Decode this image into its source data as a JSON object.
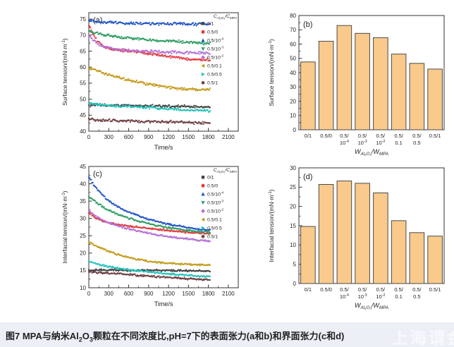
{
  "figure": {
    "caption_runs": [
      {
        "text": "图7 MPA与纳米Al"
      },
      {
        "text": "2",
        "sub": true
      },
      {
        "text": "O"
      },
      {
        "text": "3",
        "sub": true
      },
      {
        "text": "颗粒在不同浓度比,pH=7下的表面张力(a和b)和界面张力(c和d)"
      }
    ],
    "watermark": "上海谓金",
    "colors": {
      "frame": "#333333",
      "caption_bg": "#EDEFF7",
      "bar_fill": "#F9CA8C",
      "bar_border": "#4A4A4A"
    }
  },
  "chart_data": [
    {
      "id": "a",
      "type": "scatter",
      "panel_label": "(a)",
      "xlabel": "Time/s",
      "ylabel": "Surface tension/(mN·m^{-1})",
      "xlim": [
        0,
        2250
      ],
      "ylim": [
        40,
        77
      ],
      "xticks": [
        0,
        300,
        600,
        900,
        1200,
        1500,
        1800,
        2100
      ],
      "yticks": [
        40,
        45,
        50,
        55,
        60,
        65,
        70,
        75
      ],
      "x_minor_step": 150,
      "y_minor_step": 2.5,
      "grid": false,
      "noise": 0.5,
      "legend_position": "top-right-inside",
      "legend_title": "C_{Al₂O₃}/C_{MPA}",
      "series": [
        {
          "name": "0/1",
          "color": "#434343",
          "marker": "square",
          "points": [
            [
              0,
              48.3
            ],
            [
              200,
              48.1
            ],
            [
              400,
              48.0
            ],
            [
              600,
              48.0
            ],
            [
              800,
              47.9
            ],
            [
              1000,
              47.9
            ],
            [
              1200,
              47.8
            ],
            [
              1400,
              47.7
            ],
            [
              1600,
              47.6
            ],
            [
              1800,
              47.5
            ]
          ]
        },
        {
          "name": "0.5/0",
          "color": "#E23B3E",
          "marker": "circle",
          "points": [
            [
              0,
              73.2
            ],
            [
              60,
              70.5
            ],
            [
              120,
              68.3
            ],
            [
              200,
              66.8
            ],
            [
              300,
              65.9
            ],
            [
              400,
              65.4
            ],
            [
              500,
              65.2
            ],
            [
              600,
              65.0
            ],
            [
              800,
              64.6
            ],
            [
              1000,
              64.0
            ],
            [
              1200,
              63.3
            ],
            [
              1400,
              62.8
            ],
            [
              1600,
              62.5
            ],
            [
              1800,
              62.3
            ]
          ]
        },
        {
          "name": "0.5/10^{-4}",
          "color": "#2356C7",
          "marker": "triangle-up",
          "points": [
            [
              0,
              74.6
            ],
            [
              200,
              74.1
            ],
            [
              400,
              73.9
            ],
            [
              600,
              73.8
            ],
            [
              800,
              73.7
            ],
            [
              1000,
              73.6
            ],
            [
              1200,
              73.5
            ],
            [
              1400,
              73.5
            ],
            [
              1600,
              73.4
            ],
            [
              1800,
              73.4
            ]
          ]
        },
        {
          "name": "0.5/10^{-3}",
          "color": "#2F9E63",
          "marker": "triangle-down",
          "points": [
            [
              0,
              71.2
            ],
            [
              200,
              70.2
            ],
            [
              400,
              69.5
            ],
            [
              600,
              69.1
            ],
            [
              800,
              68.7
            ],
            [
              1000,
              68.4
            ],
            [
              1200,
              68.2
            ],
            [
              1400,
              67.9
            ],
            [
              1600,
              67.6
            ],
            [
              1800,
              67.3
            ]
          ]
        },
        {
          "name": "0.5/10^{-2}",
          "color": "#B671D8",
          "marker": "diamond",
          "points": [
            [
              0,
              70.0
            ],
            [
              100,
              67.8
            ],
            [
              200,
              66.5
            ],
            [
              300,
              65.9
            ],
            [
              400,
              65.5
            ],
            [
              600,
              65.2
            ],
            [
              800,
              65.0
            ],
            [
              1000,
              64.9
            ],
            [
              1200,
              64.7
            ],
            [
              1400,
              64.6
            ],
            [
              1600,
              64.5
            ],
            [
              1800,
              64.4
            ]
          ]
        },
        {
          "name": "0.5/0.1",
          "color": "#C49B1B",
          "marker": "triangle-left",
          "points": [
            [
              0,
              59.7
            ],
            [
              200,
              58.2
            ],
            [
              400,
              57.0
            ],
            [
              600,
              56.0
            ],
            [
              800,
              55.1
            ],
            [
              1000,
              54.3
            ],
            [
              1200,
              53.7
            ],
            [
              1400,
              53.2
            ],
            [
              1600,
              53.0
            ],
            [
              1800,
              53.0
            ]
          ]
        },
        {
          "name": "0.5/0.5",
          "color": "#24C4BC",
          "marker": "triangle-right",
          "points": [
            [
              0,
              48.5
            ],
            [
              200,
              48.2
            ],
            [
              400,
              47.9
            ],
            [
              600,
              47.7
            ],
            [
              800,
              47.5
            ],
            [
              1000,
              47.2
            ],
            [
              1200,
              46.9
            ],
            [
              1400,
              46.7
            ],
            [
              1600,
              46.5
            ],
            [
              1800,
              46.3
            ]
          ]
        },
        {
          "name": "0.5/1",
          "color": "#714244",
          "marker": "hexagon",
          "points": [
            [
              0,
              43.7
            ],
            [
              200,
              43.4
            ],
            [
              400,
              43.3
            ],
            [
              600,
              43.2
            ],
            [
              800,
              43.1
            ],
            [
              1000,
              43.0
            ],
            [
              1200,
              42.9
            ],
            [
              1400,
              42.8
            ],
            [
              1600,
              42.6
            ],
            [
              1800,
              42.5
            ]
          ]
        }
      ]
    },
    {
      "id": "b",
      "type": "bar",
      "panel_label": "(b)",
      "xlabel": "W_{Al₂O₃}/W_{MPA}",
      "ylabel": "Surface tension/(mN·m^{-1})",
      "ylim": [
        0,
        80
      ],
      "yticks": [
        0,
        10,
        20,
        30,
        40,
        50,
        60,
        70,
        80
      ],
      "y_minor_step": 5,
      "categories": [
        [
          "0/1"
        ],
        [
          "0.5/0"
        ],
        [
          "0.5/",
          "10^{-4}"
        ],
        [
          "0.5/",
          "10^{-3}"
        ],
        [
          "0.5/",
          "10^{-2}"
        ],
        [
          "0.5/",
          "0.1"
        ],
        [
          "0.5/",
          "0.5"
        ],
        [
          "0.5/1"
        ]
      ],
      "values": [
        47.5,
        62,
        73,
        67.5,
        64.5,
        53,
        46.5,
        42.5
      ]
    },
    {
      "id": "c",
      "type": "scatter",
      "panel_label": "(c)",
      "xlabel": "Time/s",
      "ylabel": "Interfacial tension/(mN·m^{-1})",
      "xlim": [
        0,
        2250
      ],
      "ylim": [
        10,
        45
      ],
      "xticks": [
        0,
        300,
        600,
        900,
        1200,
        1500,
        1800,
        2100
      ],
      "yticks": [
        10,
        15,
        20,
        25,
        30,
        35,
        40,
        45
      ],
      "x_minor_step": 150,
      "y_minor_step": 2.5,
      "grid": false,
      "noise": 0.32,
      "legend_position": "top-right-inside",
      "legend_title": "C_{Al₂O₃}/C_{MPA}",
      "series": [
        {
          "name": "0/1",
          "color": "#434343",
          "marker": "square",
          "points": [
            [
              0,
              15.1
            ],
            [
              300,
              15.1
            ],
            [
              600,
              15.0
            ],
            [
              900,
              15.0
            ],
            [
              1200,
              15.0
            ],
            [
              1500,
              14.9
            ],
            [
              1800,
              14.8
            ]
          ]
        },
        {
          "name": "0.5/0",
          "color": "#E23B3E",
          "marker": "circle",
          "points": [
            [
              0,
              31.6
            ],
            [
              100,
              30.2
            ],
            [
              200,
              29.3
            ],
            [
              300,
              28.7
            ],
            [
              450,
              28.2
            ],
            [
              600,
              27.8
            ],
            [
              800,
              27.3
            ],
            [
              1000,
              26.9
            ],
            [
              1200,
              26.5
            ],
            [
              1400,
              26.1
            ],
            [
              1600,
              25.8
            ],
            [
              1800,
              25.6
            ]
          ]
        },
        {
          "name": "0.5/10^{-4}",
          "color": "#2356C7",
          "marker": "triangle-up",
          "points": [
            [
              0,
              42.0
            ],
            [
              80,
              39.5
            ],
            [
              160,
              37.6
            ],
            [
              250,
              35.9
            ],
            [
              350,
              34.4
            ],
            [
              450,
              33.2
            ],
            [
              600,
              31.8
            ],
            [
              750,
              30.7
            ],
            [
              900,
              29.8
            ],
            [
              1100,
              28.8
            ],
            [
              1300,
              28.0
            ],
            [
              1500,
              27.3
            ],
            [
              1650,
              26.9
            ],
            [
              1800,
              26.6
            ]
          ]
        },
        {
          "name": "0.5/10^{-3}",
          "color": "#2F9E63",
          "marker": "triangle-down",
          "points": [
            [
              0,
              36.4
            ],
            [
              100,
              34.8
            ],
            [
              200,
              33.5
            ],
            [
              300,
              32.4
            ],
            [
              450,
              31.1
            ],
            [
              600,
              30.0
            ],
            [
              750,
              29.2
            ],
            [
              900,
              28.5
            ],
            [
              1100,
              27.7
            ],
            [
              1300,
              27.0
            ],
            [
              1500,
              26.5
            ],
            [
              1800,
              26.0
            ]
          ]
        },
        {
          "name": "0.5/10^{-2}",
          "color": "#B671D8",
          "marker": "diamond",
          "points": [
            [
              0,
              32.3
            ],
            [
              100,
              30.7
            ],
            [
              200,
              29.6
            ],
            [
              300,
              28.8
            ],
            [
              450,
              27.8
            ],
            [
              600,
              27.0
            ],
            [
              750,
              26.3
            ],
            [
              900,
              25.7
            ],
            [
              1100,
              25.0
            ],
            [
              1300,
              24.4
            ],
            [
              1500,
              24.0
            ],
            [
              1800,
              23.5
            ]
          ]
        },
        {
          "name": "0.5/0.1",
          "color": "#C49B1B",
          "marker": "triangle-left",
          "points": [
            [
              0,
              23.1
            ],
            [
              150,
              21.7
            ],
            [
              300,
              20.5
            ],
            [
              450,
              19.5
            ],
            [
              600,
              18.7
            ],
            [
              750,
              18.1
            ],
            [
              900,
              17.6
            ],
            [
              1100,
              17.2
            ],
            [
              1300,
              16.9
            ],
            [
              1500,
              16.7
            ],
            [
              1800,
              16.5
            ]
          ]
        },
        {
          "name": "0.5/0.5",
          "color": "#24C4BC",
          "marker": "triangle-right",
          "points": [
            [
              0,
              17.6
            ],
            [
              150,
              16.7
            ],
            [
              300,
              16.1
            ],
            [
              450,
              15.6
            ],
            [
              600,
              15.2
            ],
            [
              800,
              14.8
            ],
            [
              1000,
              14.4
            ],
            [
              1200,
              14.0
            ],
            [
              1400,
              13.7
            ],
            [
              1600,
              13.4
            ],
            [
              1800,
              13.2
            ]
          ]
        },
        {
          "name": "0.5/1",
          "color": "#714244",
          "marker": "hexagon",
          "points": [
            [
              0,
              14.6
            ],
            [
              200,
              14.3
            ],
            [
              400,
              14.1
            ],
            [
              600,
              13.8
            ],
            [
              800,
              13.5
            ],
            [
              1000,
              13.2
            ],
            [
              1200,
              13.0
            ],
            [
              1400,
              12.7
            ],
            [
              1600,
              12.5
            ],
            [
              1800,
              12.3
            ]
          ]
        }
      ]
    },
    {
      "id": "d",
      "type": "bar",
      "panel_label": "(d)",
      "xlabel": "W_{Al₂O₃}/W_{MPA}",
      "ylabel": "Interfacial tension/(mN·m^{-1})",
      "ylim": [
        0,
        30
      ],
      "yticks": [
        0,
        5,
        10,
        15,
        20,
        25,
        30
      ],
      "y_minor_step": 2.5,
      "categories": [
        [
          "0/1"
        ],
        [
          "0.5/0"
        ],
        [
          "0.5/",
          "10^{-4}"
        ],
        [
          "0.5/",
          "10^{-3}"
        ],
        [
          "0.5/",
          "10^{-2}"
        ],
        [
          "0.5/",
          "0.1"
        ],
        [
          "0.5/",
          "0.5"
        ],
        [
          "0.5/1"
        ]
      ],
      "values": [
        14.8,
        25.7,
        26.6,
        26.0,
        23.5,
        16.3,
        13.2,
        12.3
      ]
    }
  ]
}
